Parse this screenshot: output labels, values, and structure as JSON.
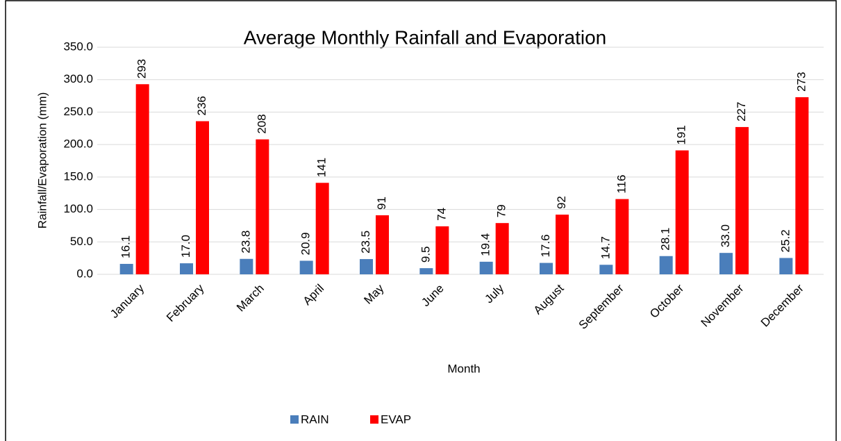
{
  "chart_data": {
    "type": "bar",
    "title": "Average Monthly Rainfall and Evaporation",
    "x_label": "Month",
    "y_label": "Rainfall/Evaporation (mm)",
    "categories": [
      "January",
      "February",
      "March",
      "April",
      "May",
      "June",
      "July",
      "August",
      "September",
      "October",
      "November",
      "December"
    ],
    "series": [
      {
        "name": "RAIN",
        "color": "#4a7ebb",
        "values": [
          16.1,
          17.0,
          23.8,
          20.9,
          23.5,
          9.5,
          19.4,
          17.6,
          14.7,
          28.1,
          33.0,
          25.2
        ],
        "value_labels": [
          "16.1",
          "17.0",
          "23.8",
          "20.9",
          "23.5",
          "9.5",
          "19.4",
          "17.6",
          "14.7",
          "28.1",
          "33.0",
          "25.2"
        ]
      },
      {
        "name": "EVAP",
        "color": "#ff0000",
        "values": [
          293,
          236,
          208,
          141,
          91,
          74,
          79,
          92,
          116,
          191,
          227,
          273
        ]
      }
    ],
    "ylim": [
      0,
      350
    ],
    "yticks": [
      {
        "value": 0,
        "label": "0.0"
      },
      {
        "value": 50,
        "label": "50.0"
      },
      {
        "value": 100,
        "label": "100.0"
      },
      {
        "value": 150,
        "label": "150.0"
      },
      {
        "value": 200,
        "label": "200.0"
      },
      {
        "value": 250,
        "label": "250.0"
      },
      {
        "value": 300,
        "label": "300.0"
      },
      {
        "value": 350,
        "label": "350.0"
      }
    ],
    "grid": true,
    "legend": "bottom"
  }
}
